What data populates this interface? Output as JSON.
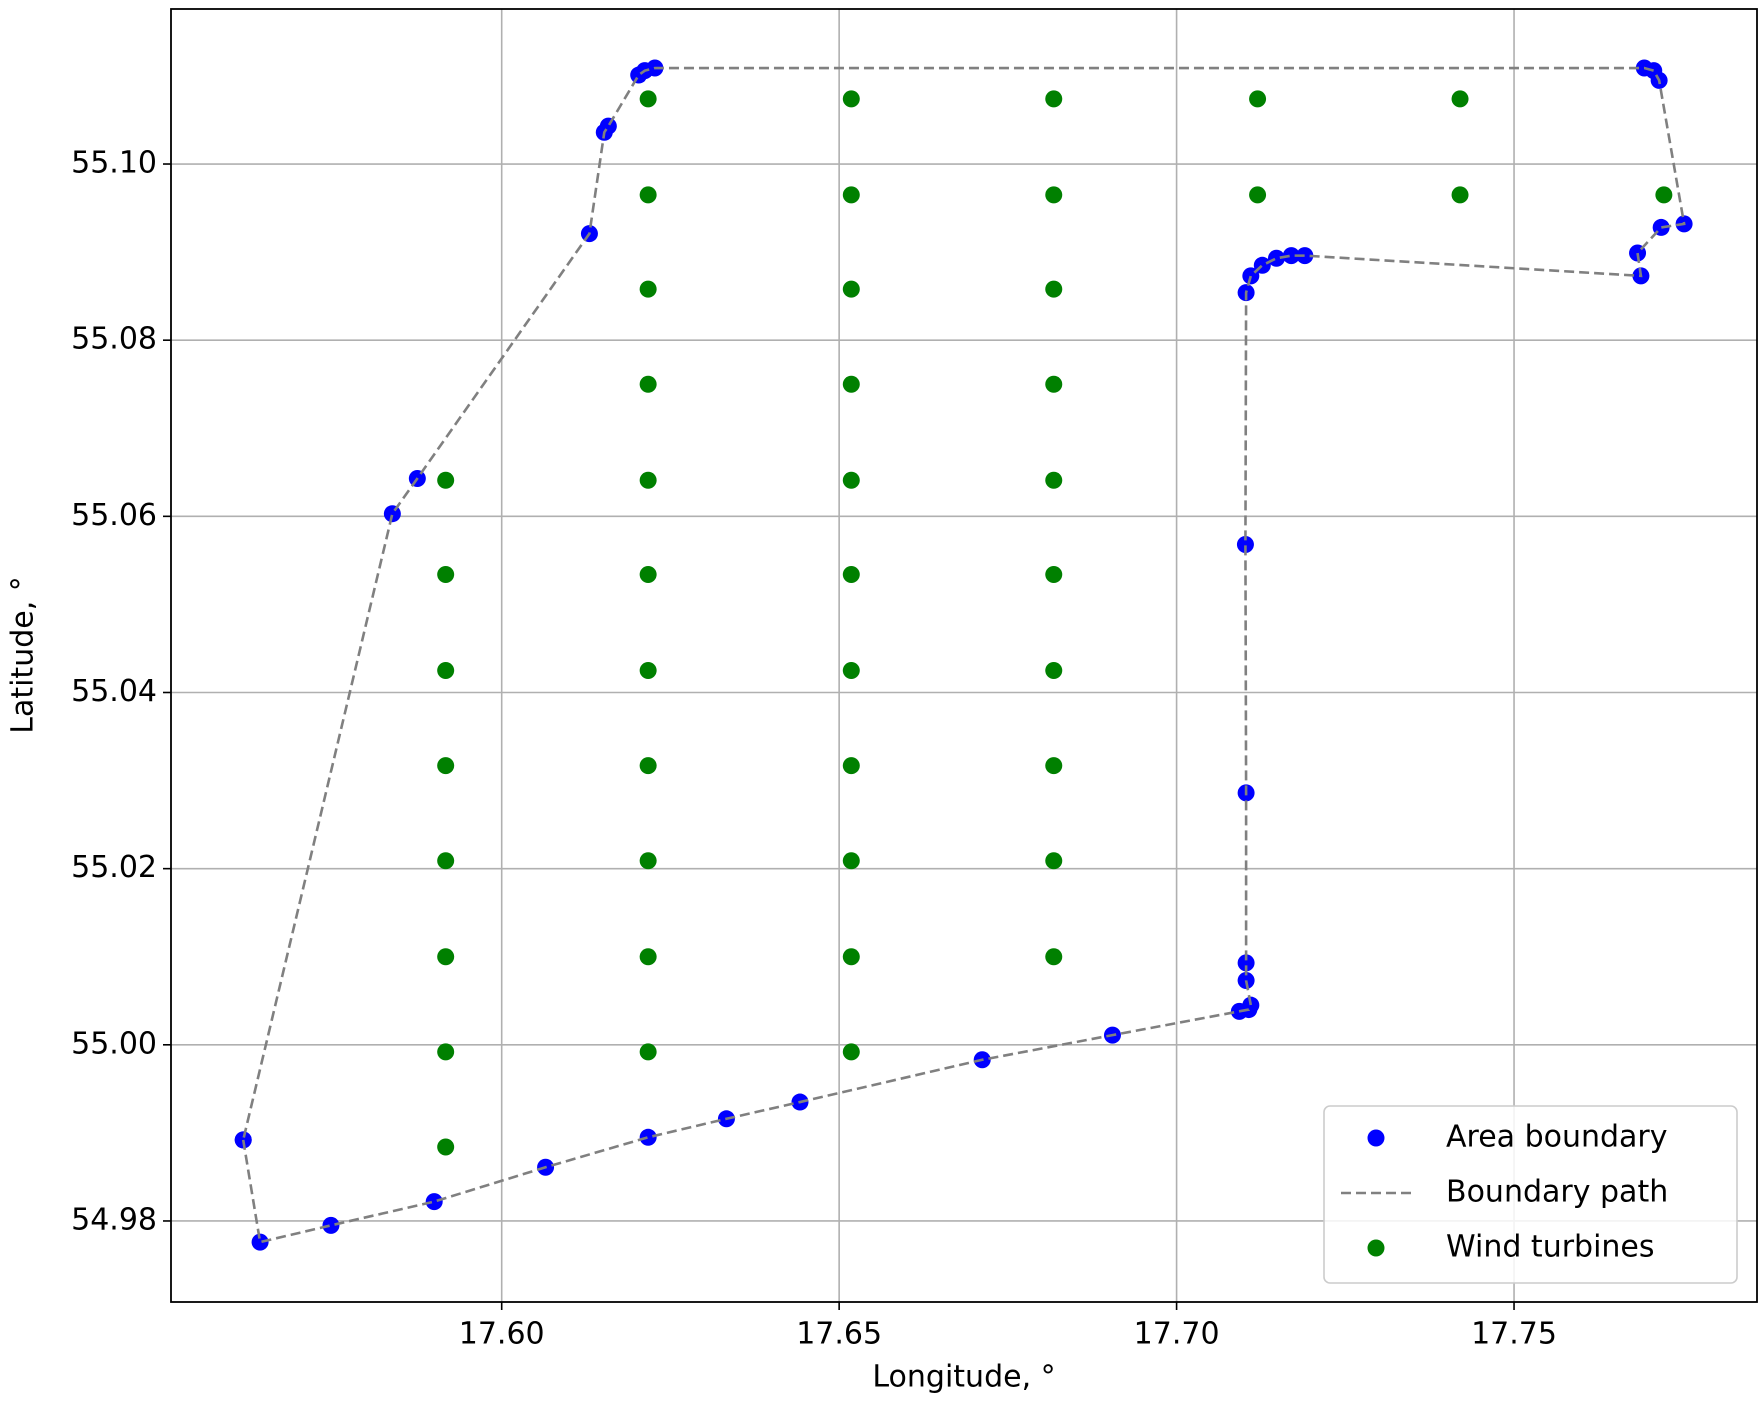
{
  "chart_data": {
    "type": "scatter",
    "xlabel": "Longitude, °",
    "ylabel": "Latitude, °",
    "xlim": [
      17.551,
      17.786
    ],
    "ylim": [
      54.9708,
      55.1176
    ],
    "xticks": [
      {
        "value": 17.6,
        "label": "17.60"
      },
      17.65,
      {
        "value": 17.7,
        "label": "17.70"
      },
      17.75
    ],
    "yticks": [
      {
        "value": 54.98,
        "label": "54.98"
      },
      {
        "value": 55.0,
        "label": "55.00"
      },
      55.02,
      55.04,
      55.06,
      55.08,
      {
        "value": 55.1,
        "label": "55.10"
      }
    ],
    "grid": true,
    "legend": "lower right",
    "series": [
      {
        "name": "Area boundary",
        "color": "#0000ff",
        "x": [
          17.5617,
          17.5642,
          17.5747,
          17.59,
          17.6065,
          17.6217,
          17.6333,
          17.6442,
          17.6712,
          17.6905,
          17.7093,
          17.7107,
          17.711,
          17.7103,
          17.7103,
          17.7103,
          17.7102,
          17.7103,
          17.711,
          17.7127,
          17.7148,
          17.717,
          17.719,
          17.7688,
          17.7683,
          17.7718,
          17.7752,
          17.7715,
          17.7707,
          17.7693,
          17.6227,
          17.6212,
          17.6203,
          17.6158,
          17.6152,
          17.613,
          17.5875,
          17.5838,
          17.5617
        ],
        "values": [
          54.9892,
          54.9776,
          54.9795,
          54.9822,
          54.9861,
          54.9895,
          54.9916,
          54.9935,
          54.9983,
          55.0011,
          55.0038,
          55.004,
          55.0045,
          55.0073,
          55.0093,
          55.0286,
          55.0568,
          55.0854,
          55.0873,
          55.0885,
          55.0893,
          55.0896,
          55.0896,
          55.0873,
          55.0899,
          55.0928,
          55.0932,
          55.1095,
          55.1106,
          55.1109,
          55.1109,
          55.1106,
          55.1101,
          55.1043,
          55.1036,
          55.0921,
          55.0643,
          55.0603,
          54.9892
        ]
      },
      {
        "name": "Wind turbines",
        "color": "#008000",
        "x": [
          17.5917,
          17.5917,
          17.5917,
          17.5917,
          17.5917,
          17.5917,
          17.5917,
          17.5917,
          17.6217,
          17.6217,
          17.6217,
          17.6217,
          17.6217,
          17.6217,
          17.6217,
          17.6217,
          17.6217,
          17.6217,
          17.6217,
          17.6518,
          17.6518,
          17.6518,
          17.6518,
          17.6518,
          17.6518,
          17.6518,
          17.6518,
          17.6518,
          17.6518,
          17.6518,
          17.6818,
          17.6818,
          17.6818,
          17.6818,
          17.6818,
          17.6818,
          17.6818,
          17.6818,
          17.6818,
          17.6818,
          17.712,
          17.712,
          17.742,
          17.742,
          17.7722
        ],
        "values": [
          55.0641,
          55.0534,
          55.0425,
          55.0317,
          55.0209,
          55.01,
          54.9992,
          54.9884,
          55.1074,
          55.0965,
          55.0858,
          55.075,
          55.0641,
          55.0534,
          55.0425,
          55.0317,
          55.0209,
          55.01,
          54.9992,
          55.1074,
          55.0965,
          55.0858,
          55.075,
          55.0641,
          55.0534,
          55.0425,
          55.0317,
          55.0209,
          55.01,
          54.9992,
          55.1074,
          55.0965,
          55.0858,
          55.075,
          55.0641,
          55.0534,
          55.0425,
          55.0317,
          55.0209,
          55.01,
          55.1074,
          55.0965,
          55.1074,
          55.0965,
          55.0965
        ]
      }
    ],
    "path": {
      "name": "Boundary path",
      "color": "#808080",
      "dashed": true
    }
  }
}
